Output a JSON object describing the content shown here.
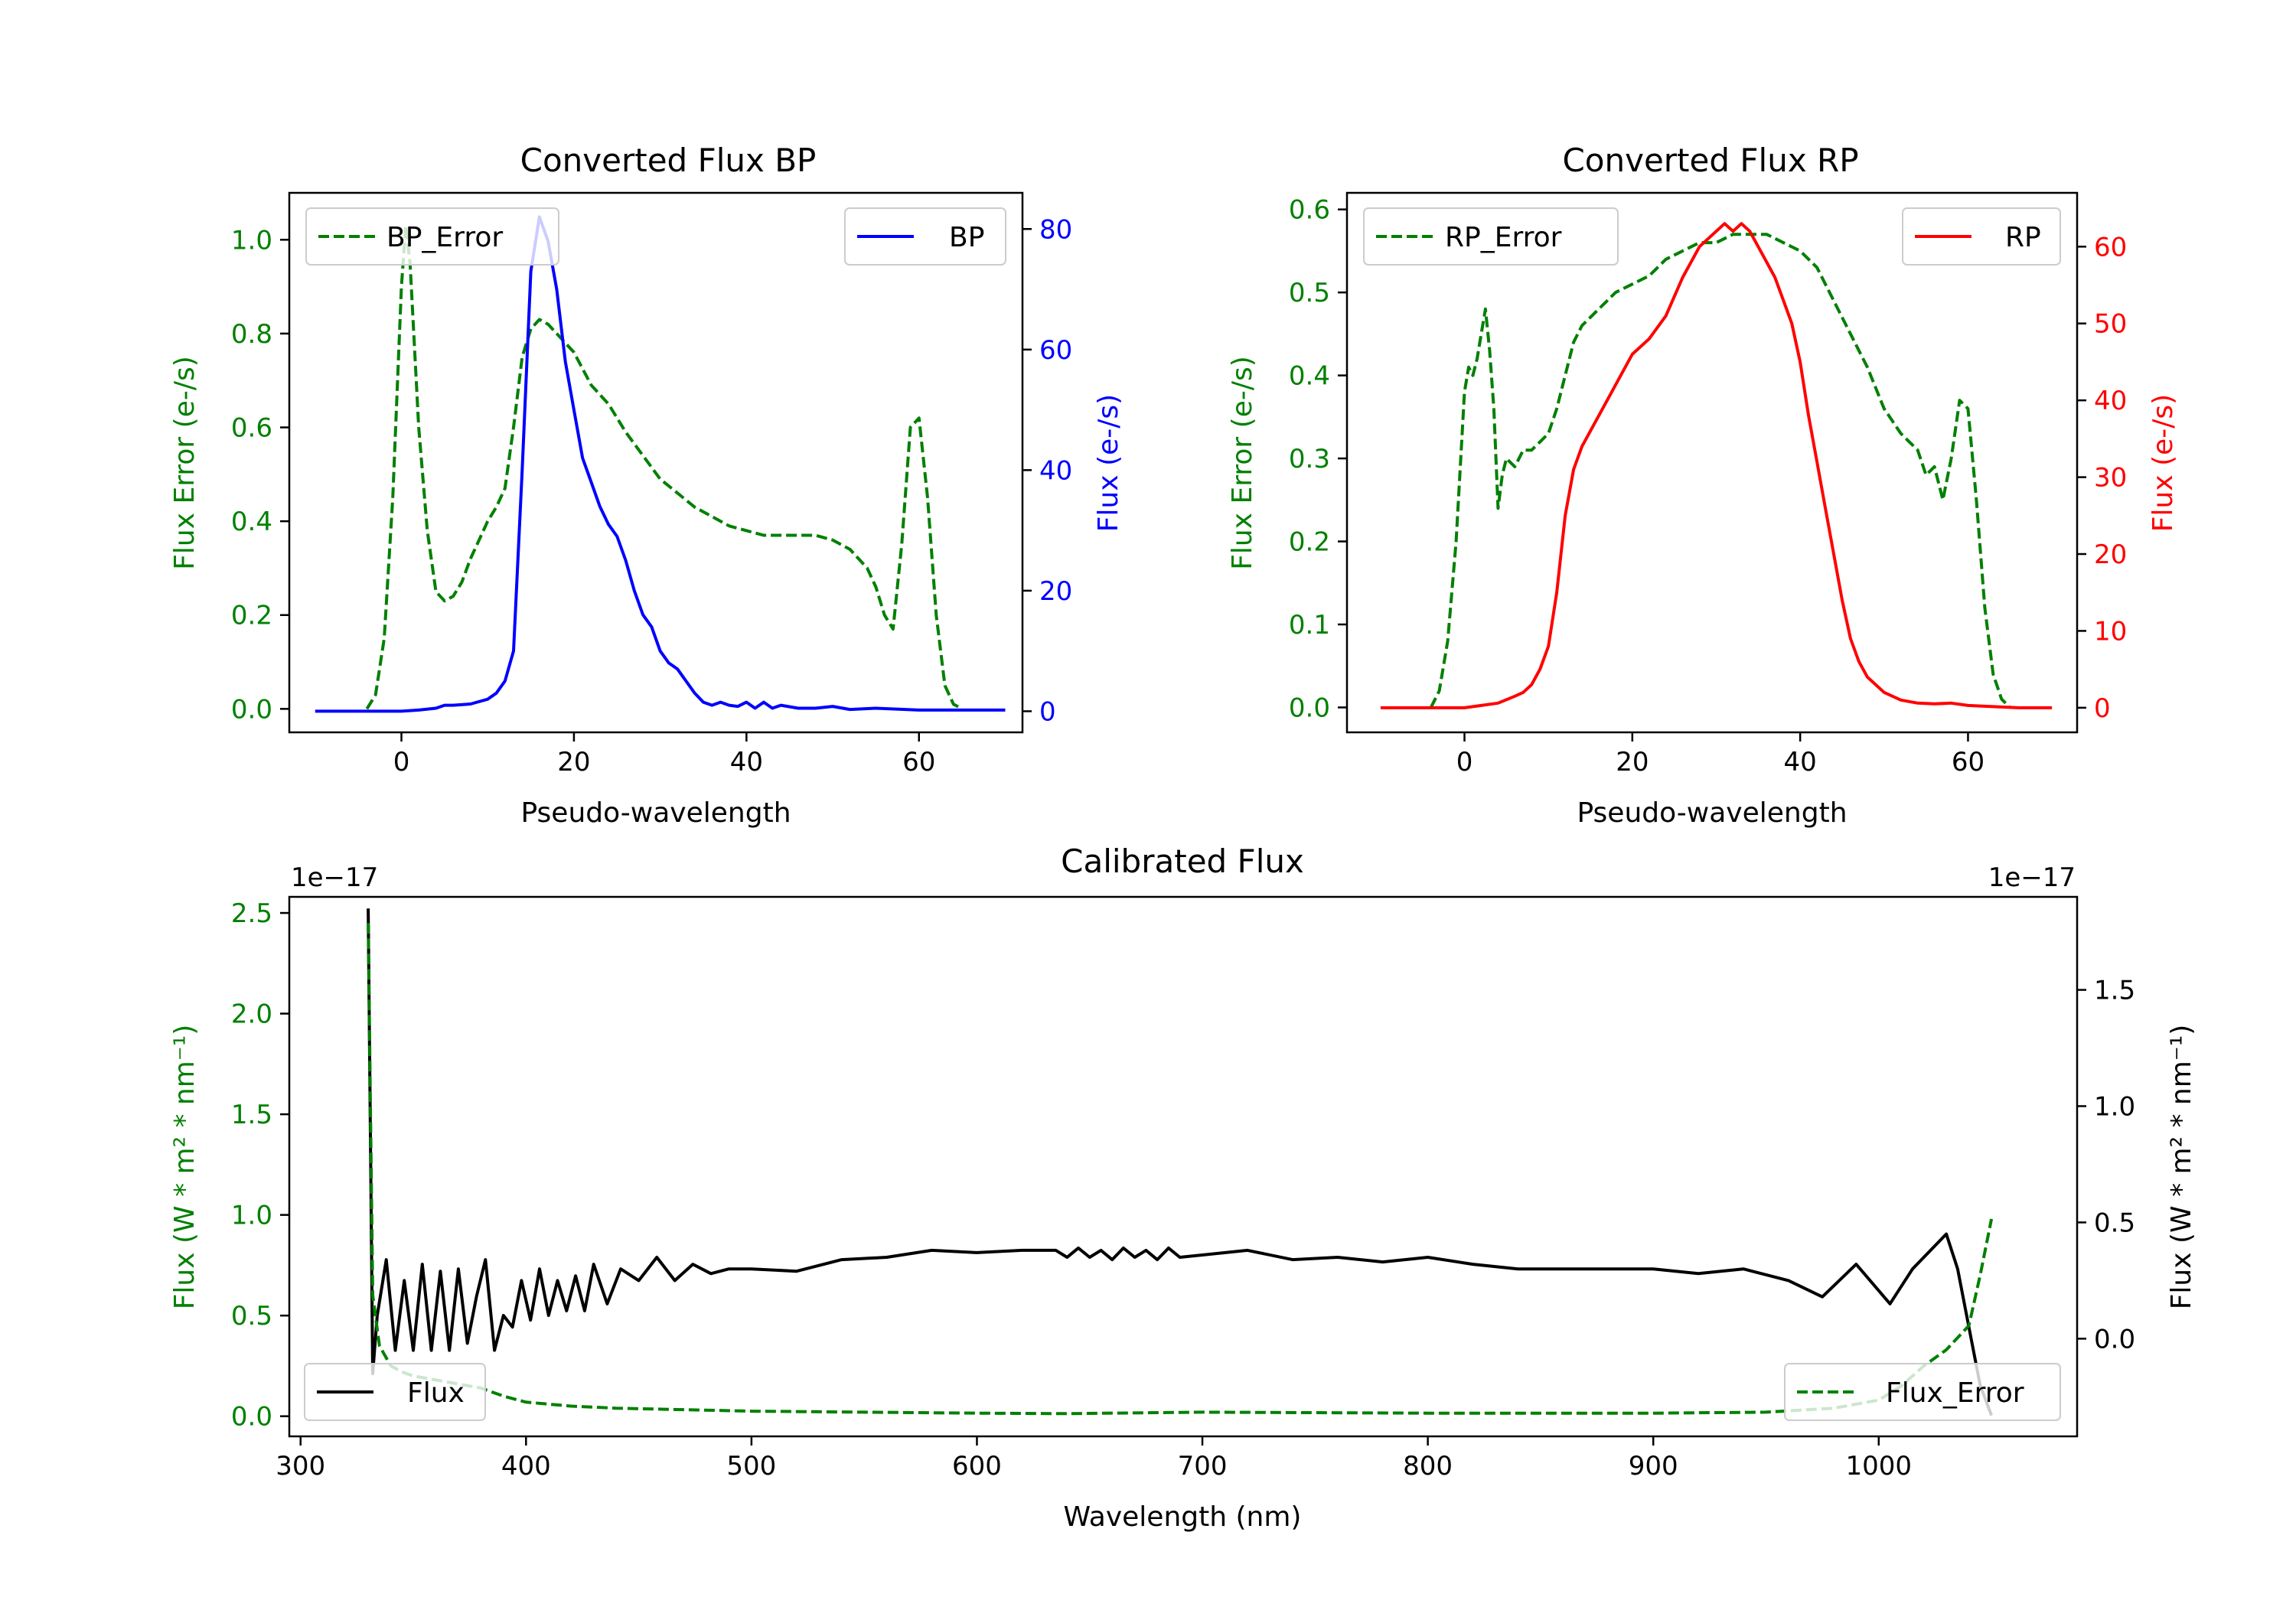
{
  "chart_data": [
    {
      "id": "bp",
      "type": "line",
      "title": "Converted Flux BP",
      "xlabel": "Pseudo-wavelength",
      "ylabel_left": "Flux Error (e-/s)",
      "ylabel_right": "Flux (e-/s)",
      "xlim": [
        -13,
        72
      ],
      "ylim_left": [
        -0.05,
        1.1
      ],
      "ylim_right": [
        -3.5,
        86
      ],
      "xticks": [
        0,
        20,
        40,
        60
      ],
      "yticks_left": [
        0.0,
        0.2,
        0.4,
        0.6,
        0.8,
        1.0
      ],
      "yticks_right": [
        0,
        20,
        40,
        60,
        80
      ],
      "colors": {
        "left": "#008000",
        "right": "#0000ff"
      },
      "series": [
        {
          "name": "BP_Error",
          "axis": "left",
          "style": "dashed",
          "color": "#008000",
          "legend": "top-left",
          "x": [
            -4,
            -3,
            -2,
            -1,
            0,
            0.5,
            1,
            2,
            3,
            4,
            5,
            6,
            7,
            8,
            9,
            10,
            11,
            12,
            13,
            14,
            15,
            16,
            17,
            18,
            19,
            20,
            22,
            24,
            26,
            28,
            30,
            32,
            34,
            36,
            38,
            40,
            42,
            44,
            46,
            48,
            50,
            52,
            54,
            55,
            56,
            57,
            58,
            59,
            60,
            61,
            62,
            63,
            64,
            65
          ],
          "y": [
            0.0,
            0.03,
            0.15,
            0.45,
            0.9,
            1.03,
            0.95,
            0.6,
            0.38,
            0.25,
            0.23,
            0.24,
            0.27,
            0.32,
            0.36,
            0.4,
            0.43,
            0.47,
            0.6,
            0.75,
            0.81,
            0.83,
            0.82,
            0.8,
            0.78,
            0.76,
            0.69,
            0.65,
            0.59,
            0.54,
            0.49,
            0.46,
            0.43,
            0.41,
            0.39,
            0.38,
            0.37,
            0.37,
            0.37,
            0.37,
            0.36,
            0.34,
            0.3,
            0.26,
            0.2,
            0.17,
            0.35,
            0.6,
            0.62,
            0.45,
            0.2,
            0.05,
            0.01,
            0.0
          ]
        },
        {
          "name": "BP",
          "axis": "right",
          "style": "solid",
          "color": "#0000ff",
          "legend": "top-right",
          "x": [
            -10,
            -5,
            0,
            2,
            4,
            5,
            6,
            8,
            10,
            11,
            12,
            13,
            14,
            15,
            16,
            17,
            18,
            19,
            20,
            21,
            22,
            23,
            24,
            25,
            26,
            27,
            28,
            29,
            30,
            31,
            32,
            33,
            34,
            35,
            36,
            37,
            38,
            39,
            40,
            41,
            42,
            43,
            44,
            46,
            48,
            50,
            52,
            55,
            60,
            65,
            70
          ],
          "y": [
            0,
            0,
            0,
            0.2,
            0.5,
            1,
            1,
            1.2,
            2,
            3,
            5,
            10,
            40,
            73,
            82,
            78,
            70,
            58,
            50,
            42,
            38,
            34,
            31,
            29,
            25,
            20,
            16,
            14,
            10,
            8,
            7,
            5,
            3,
            1.5,
            1,
            1.5,
            1,
            0.8,
            1.5,
            0.5,
            1.5,
            0.5,
            1,
            0.5,
            0.5,
            0.8,
            0.3,
            0.5,
            0.2,
            0.2,
            0.2
          ]
        }
      ]
    },
    {
      "id": "rp",
      "type": "line",
      "title": "Converted Flux RP",
      "xlabel": "Pseudo-wavelength",
      "ylabel_left": "Flux Error (e-/s)",
      "ylabel_right": "Flux (e-/s)",
      "xlim": [
        -14,
        73
      ],
      "ylim_left": [
        -0.03,
        0.62
      ],
      "ylim_right": [
        -3.2,
        67
      ],
      "xticks": [
        0,
        20,
        40,
        60
      ],
      "yticks_left": [
        0.0,
        0.1,
        0.2,
        0.3,
        0.4,
        0.5,
        0.6
      ],
      "yticks_right": [
        0,
        10,
        20,
        30,
        40,
        50,
        60
      ],
      "colors": {
        "left": "#008000",
        "right": "#ff0000"
      },
      "series": [
        {
          "name": "RP_Error",
          "axis": "left",
          "style": "dashed",
          "color": "#008000",
          "legend": "top-left",
          "x": [
            -4,
            -3,
            -2,
            -1,
            0,
            0.5,
            1,
            1.5,
            2,
            2.5,
            3,
            3.5,
            4,
            4.5,
            5,
            6,
            7,
            8,
            9,
            10,
            11,
            12,
            13,
            14,
            15,
            16,
            18,
            20,
            22,
            24,
            26,
            28,
            30,
            32,
            34,
            36,
            38,
            40,
            42,
            44,
            46,
            48,
            50,
            52,
            53,
            54,
            55,
            56,
            57,
            58,
            59,
            60,
            61,
            62,
            63,
            64,
            65
          ],
          "y": [
            0.0,
            0.02,
            0.08,
            0.2,
            0.38,
            0.41,
            0.4,
            0.42,
            0.45,
            0.48,
            0.43,
            0.36,
            0.24,
            0.28,
            0.3,
            0.29,
            0.31,
            0.31,
            0.32,
            0.33,
            0.36,
            0.4,
            0.44,
            0.46,
            0.47,
            0.48,
            0.5,
            0.51,
            0.52,
            0.54,
            0.55,
            0.56,
            0.56,
            0.57,
            0.57,
            0.57,
            0.56,
            0.55,
            0.53,
            0.49,
            0.45,
            0.41,
            0.36,
            0.33,
            0.32,
            0.31,
            0.28,
            0.29,
            0.25,
            0.3,
            0.37,
            0.36,
            0.25,
            0.12,
            0.04,
            0.01,
            0.0
          ]
        },
        {
          "name": "RP",
          "axis": "right",
          "style": "solid",
          "color": "#ff0000",
          "legend": "top-right",
          "x": [
            -10,
            -5,
            0,
            2,
            4,
            6,
            7,
            8,
            9,
            10,
            11,
            12,
            13,
            14,
            16,
            18,
            20,
            22,
            24,
            26,
            27,
            28,
            30,
            31,
            32,
            33,
            34,
            35,
            36,
            37,
            38,
            39,
            40,
            41,
            42,
            43,
            44,
            45,
            46,
            47,
            48,
            50,
            52,
            54,
            56,
            58,
            60,
            62,
            64,
            66,
            70
          ],
          "y": [
            0,
            0,
            0,
            0.3,
            0.6,
            1.5,
            2,
            3,
            5,
            8,
            15,
            25,
            31,
            34,
            38,
            42,
            46,
            48,
            51,
            56,
            58,
            60,
            62,
            63,
            62,
            63,
            62,
            60,
            58,
            56,
            53,
            50,
            45,
            38,
            32,
            26,
            20,
            14,
            9,
            6,
            4,
            2,
            1,
            0.6,
            0.5,
            0.6,
            0.3,
            0.2,
            0.1,
            0,
            0
          ]
        }
      ]
    },
    {
      "id": "cal",
      "type": "line",
      "title": "Calibrated Flux",
      "xlabel": "Wavelength (nm)",
      "ylabel_left": "Flux (W * m² * nm⁻¹)",
      "ylabel_right": "Flux (W * m² * nm⁻¹)",
      "offset_left": "1e−17",
      "offset_right": "1e−17",
      "xlim": [
        295,
        1088
      ],
      "ylim_left": [
        -0.1,
        2.58
      ],
      "ylim_right": [
        -0.42,
        1.9
      ],
      "xticks": [
        300,
        400,
        500,
        600,
        700,
        800,
        900,
        1000
      ],
      "yticks_left": [
        0.0,
        0.5,
        1.0,
        1.5,
        2.0,
        2.5
      ],
      "yticks_right": [
        0.0,
        0.5,
        1.0,
        1.5
      ],
      "colors": {
        "left": "#008000",
        "right": "#000000"
      },
      "series": [
        {
          "name": "Flux",
          "axis": "right",
          "style": "solid",
          "color": "#000000",
          "legend": "bottom-left",
          "x": [
            330,
            332,
            334,
            338,
            342,
            346,
            350,
            354,
            358,
            362,
            366,
            370,
            374,
            378,
            382,
            386,
            390,
            394,
            398,
            402,
            406,
            410,
            414,
            418,
            422,
            426,
            430,
            436,
            442,
            450,
            458,
            466,
            474,
            482,
            490,
            500,
            520,
            540,
            560,
            580,
            600,
            620,
            635,
            640,
            645,
            650,
            655,
            660,
            665,
            670,
            675,
            680,
            685,
            690,
            700,
            720,
            740,
            760,
            780,
            800,
            820,
            840,
            860,
            880,
            900,
            920,
            940,
            960,
            975,
            990,
            1005,
            1015,
            1030,
            1035,
            1040,
            1045,
            1050
          ],
          "y": [
            1.85,
            -0.15,
            0.1,
            0.34,
            -0.05,
            0.25,
            -0.05,
            0.32,
            -0.05,
            0.29,
            -0.05,
            0.3,
            -0.02,
            0.18,
            0.34,
            -0.05,
            0.1,
            0.05,
            0.25,
            0.08,
            0.3,
            0.1,
            0.25,
            0.12,
            0.27,
            0.12,
            0.32,
            0.15,
            0.3,
            0.25,
            0.35,
            0.25,
            0.32,
            0.28,
            0.3,
            0.3,
            0.29,
            0.34,
            0.35,
            0.38,
            0.37,
            0.38,
            0.38,
            0.35,
            0.39,
            0.35,
            0.38,
            0.34,
            0.39,
            0.35,
            0.38,
            0.34,
            0.39,
            0.35,
            0.36,
            0.38,
            0.34,
            0.35,
            0.33,
            0.35,
            0.32,
            0.3,
            0.3,
            0.3,
            0.3,
            0.28,
            0.3,
            0.25,
            0.18,
            0.32,
            0.15,
            0.3,
            0.45,
            0.3,
            0.05,
            -0.2,
            -0.33
          ]
        },
        {
          "name": "Flux_Error",
          "axis": "left",
          "style": "dashed",
          "color": "#008000",
          "legend": "bottom-right",
          "x": [
            330,
            332,
            335,
            340,
            345,
            350,
            360,
            370,
            380,
            390,
            400,
            420,
            440,
            460,
            500,
            550,
            600,
            640,
            700,
            800,
            900,
            950,
            980,
            1000,
            1010,
            1020,
            1030,
            1040,
            1045,
            1050
          ],
          "y": [
            2.45,
            0.6,
            0.35,
            0.25,
            0.22,
            0.2,
            0.18,
            0.16,
            0.14,
            0.1,
            0.07,
            0.05,
            0.04,
            0.035,
            0.025,
            0.02,
            0.015,
            0.013,
            0.02,
            0.015,
            0.015,
            0.02,
            0.04,
            0.08,
            0.15,
            0.25,
            0.33,
            0.45,
            0.7,
            0.98
          ]
        }
      ]
    }
  ]
}
